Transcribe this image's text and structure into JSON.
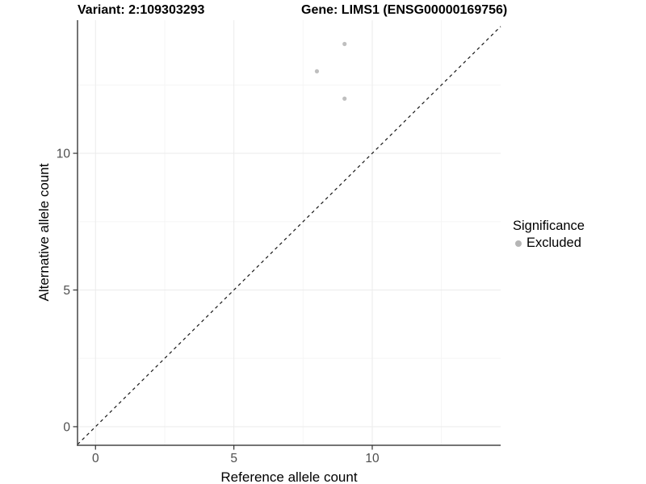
{
  "titles": {
    "variant": "Variant: 2:109303293",
    "gene": "Gene: LIMS1 (ENSG00000169756)"
  },
  "chart_data": {
    "type": "scatter",
    "title_left": "Variant: 2:109303293",
    "title_right": "Gene: LIMS1 (ENSG00000169756)",
    "xlabel": "Reference allele count",
    "ylabel": "Alternative allele count",
    "xlim": [
      -0.65,
      14.64
    ],
    "ylim": [
      -0.68,
      14.87
    ],
    "xticks": [
      0,
      5,
      10
    ],
    "yticks": [
      0,
      5,
      10
    ],
    "xminor": [
      2.5,
      7.5,
      12.5
    ],
    "yminor": [
      2.5,
      7.5,
      12.5
    ],
    "grid": {
      "major": "#ebebeb",
      "minor": "#f5f5f5",
      "background": "#ffffff"
    },
    "axis": {
      "line_color": "#474747",
      "tick_color": "#333333",
      "tick_label_color": "#4d4d4d"
    },
    "series": [
      {
        "name": "Excluded",
        "color": "#bcbcbc",
        "points": [
          {
            "x": 9,
            "y": 14
          },
          {
            "x": 8,
            "y": 13
          },
          {
            "x": 9,
            "y": 12
          }
        ]
      }
    ],
    "reference_line": {
      "type": "identity y=x",
      "style": "dashed",
      "color": "#1a1a1a"
    },
    "legend": {
      "title": "Significance",
      "position": "right",
      "items": [
        {
          "label": "Excluded",
          "color": "#b5b5b5"
        }
      ]
    }
  }
}
